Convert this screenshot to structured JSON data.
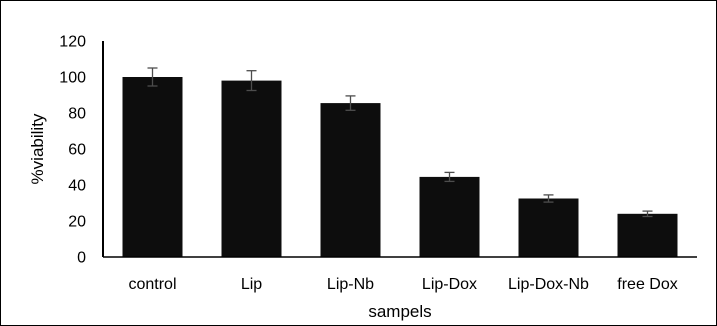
{
  "chart_data": {
    "type": "bar",
    "categories": [
      "control",
      "Lip",
      "Lip-Nb",
      "Lip-Dox",
      "Lip-Dox-Nb",
      "free Dox"
    ],
    "values": [
      100,
      98,
      85.5,
      44.5,
      32.5,
      24
    ],
    "errors": [
      5,
      5.5,
      4,
      2.5,
      2,
      1.5
    ],
    "xlabel": "sampels",
    "ylabel": "%viability",
    "ylim": [
      0,
      120
    ],
    "yticks": [
      "0",
      "20",
      "40",
      "60",
      "80",
      "100",
      "120"
    ],
    "grid": false,
    "legend": "none",
    "colors": {
      "bar": "#0d0d0d",
      "error_bar": "#4d4d4d",
      "axis": "#000000"
    }
  }
}
